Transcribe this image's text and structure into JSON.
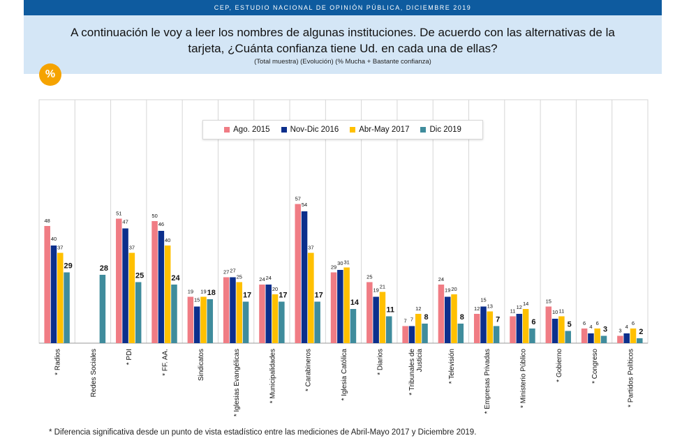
{
  "header": {
    "topbar": "CEP, ESTUDIO NACIONAL DE OPINIÓN PÚBLICA, DICIEMBRE 2019",
    "title_line1": "A continuación le voy a leer los nombres de algunas instituciones. De acuerdo con las alternativas de la",
    "title_line2": "tarjeta, ¿Cuánta confianza tiene Ud. en cada una de ellas?",
    "subtitle": "(Total muestra) (Evolución) (% Mucha + Bastante confianza)",
    "badge": "%"
  },
  "footnote": "* Diferencia significativa desde un punto de vista estadístico entre las mediciones de Abril-Mayo 2017 y Diciembre 2019.",
  "chart_data": {
    "type": "bar",
    "legend_position": "top-center",
    "ylim": [
      0,
      60
    ],
    "categories": [
      "* Radios",
      "Redes Sociales",
      "* PDI",
      "* FF. AA.",
      "Sindicatos",
      "* Iglesias Evangélicas",
      "* Municipalidades",
      "* Carabineros",
      "* Iglesia Católica",
      "* Diarios",
      "* Tribunales de Justicia",
      "* Televisión",
      "* Empresas Privadas",
      "* Ministerio Público",
      "* Gobierno",
      "* Congreso",
      "* Partidos Políticos"
    ],
    "series": [
      {
        "name": "Ago. 2015",
        "color": "#f07c84",
        "values": [
          48,
          null,
          51,
          50,
          19,
          27,
          24,
          57,
          29,
          25,
          7,
          24,
          12,
          11,
          15,
          6,
          3
        ]
      },
      {
        "name": "Nov-Dic 2016",
        "color": "#0c2f8c",
        "values": [
          40,
          null,
          47,
          46,
          15,
          27,
          24,
          54,
          30,
          19,
          7,
          19,
          15,
          12,
          10,
          4,
          4
        ]
      },
      {
        "name": "Abr-May 2017",
        "color": "#ffc000",
        "values": [
          37,
          null,
          37,
          40,
          19,
          25,
          20,
          37,
          31,
          21,
          12,
          20,
          13,
          14,
          11,
          6,
          6
        ]
      },
      {
        "name": "Dic 2019",
        "color": "#3f8c9c",
        "values": [
          29,
          28,
          25,
          24,
          18,
          17,
          17,
          17,
          14,
          11,
          8,
          8,
          7,
          6,
          5,
          3,
          2
        ]
      }
    ]
  }
}
